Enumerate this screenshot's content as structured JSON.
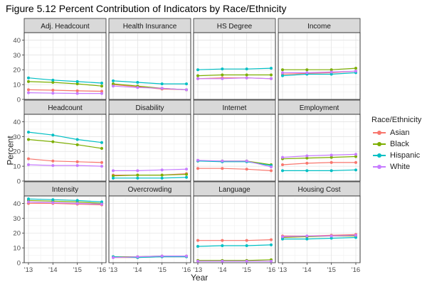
{
  "title": "Figure 5.12 Percent Contribution of Indicators by Race/Ethnicity",
  "chart_data": {
    "type": "line",
    "xlabel": "Year",
    "ylabel": "Percent",
    "x": [
      2013,
      2014,
      2015,
      2016
    ],
    "x_tick_labels": [
      "'13",
      "'14",
      "'15",
      "'16"
    ],
    "ylim": [
      0,
      45
    ],
    "y_ticks": [
      0,
      10,
      20,
      30,
      40
    ],
    "y_tick_labels": [
      "0",
      "10",
      "20",
      "30",
      "40"
    ],
    "legend": {
      "title": "Race/Ethnicity",
      "entries": [
        "Asian",
        "Black",
        "Hispanic",
        "White"
      ]
    },
    "colors": {
      "Asian": "#F8766D",
      "Black": "#7CAE00",
      "Hispanic": "#00BFC4",
      "White": "#C77CFF"
    },
    "panels": [
      {
        "name": "Adj. Headcount",
        "series": [
          {
            "name": "Asian",
            "values": [
              6.5,
              6.2,
              5.8,
              5.5
            ]
          },
          {
            "name": "Black",
            "values": [
              12,
              11.5,
              10.5,
              9
            ]
          },
          {
            "name": "Hispanic",
            "values": [
              14.5,
              13,
              12,
              11
            ]
          },
          {
            "name": "White",
            "values": [
              4.5,
              4.2,
              4,
              4
            ]
          }
        ]
      },
      {
        "name": "Health Insurance",
        "series": [
          {
            "name": "Asian",
            "values": [
              10,
              8.5,
              7,
              6.5
            ]
          },
          {
            "name": "Black",
            "values": [
              10.5,
              9,
              7.5,
              6.5
            ]
          },
          {
            "name": "Hispanic",
            "values": [
              12.5,
              11.5,
              10.5,
              10.5
            ]
          },
          {
            "name": "White",
            "values": [
              9,
              8,
              7.5,
              6.5
            ]
          }
        ]
      },
      {
        "name": "HS Degree",
        "series": [
          {
            "name": "Asian",
            "values": [
              14,
              14.5,
              14.5,
              14
            ]
          },
          {
            "name": "Black",
            "values": [
              16,
              16.5,
              16.5,
              16.5
            ]
          },
          {
            "name": "Hispanic",
            "values": [
              20,
              20.5,
              20.5,
              21
            ]
          },
          {
            "name": "White",
            "values": [
              14,
              14,
              14.5,
              14
            ]
          }
        ]
      },
      {
        "name": "Income",
        "series": [
          {
            "name": "Asian",
            "values": [
              17,
              17.5,
              18,
              19
            ]
          },
          {
            "name": "Black",
            "values": [
              20,
              20,
              20,
              21
            ]
          },
          {
            "name": "Hispanic",
            "values": [
              16,
              17,
              17,
              18
            ]
          },
          {
            "name": "White",
            "values": [
              18,
              18,
              18.5,
              19
            ]
          }
        ]
      },
      {
        "name": "Headcount",
        "series": [
          {
            "name": "Asian",
            "values": [
              15,
              13.5,
              13,
              12.5
            ]
          },
          {
            "name": "Black",
            "values": [
              28,
              26.5,
              24.5,
              22
            ]
          },
          {
            "name": "Hispanic",
            "values": [
              33,
              31,
              28,
              26
            ]
          },
          {
            "name": "White",
            "values": [
              11,
              10.5,
              10.5,
              10
            ]
          }
        ]
      },
      {
        "name": "Disability",
        "series": [
          {
            "name": "Asian",
            "values": [
              4,
              4,
              4,
              5
            ]
          },
          {
            "name": "Black",
            "values": [
              3.5,
              4,
              4,
              4.5
            ]
          },
          {
            "name": "Hispanic",
            "values": [
              2,
              2,
              2,
              2.5
            ]
          },
          {
            "name": "White",
            "values": [
              7,
              7,
              7.5,
              8
            ]
          }
        ]
      },
      {
        "name": "Internet",
        "series": [
          {
            "name": "Asian",
            "values": [
              8.5,
              8.5,
              8,
              7
            ]
          },
          {
            "name": "Black",
            "values": [
              13.5,
              13.5,
              13.5,
              11
            ]
          },
          {
            "name": "Hispanic",
            "values": [
              13.5,
              13,
              13,
              10.5
            ]
          },
          {
            "name": "White",
            "values": [
              14,
              13.5,
              13.5,
              9.5
            ]
          }
        ]
      },
      {
        "name": "Employment",
        "series": [
          {
            "name": "Asian",
            "values": [
              11,
              12,
              12.5,
              12.5
            ]
          },
          {
            "name": "Black",
            "values": [
              15,
              15.5,
              16,
              16.5
            ]
          },
          {
            "name": "Hispanic",
            "values": [
              7,
              7,
              7,
              7.5
            ]
          },
          {
            "name": "White",
            "values": [
              16,
              17,
              17.5,
              18
            ]
          }
        ]
      },
      {
        "name": "Intensity",
        "series": [
          {
            "name": "Asian",
            "values": [
              40,
              40,
              39.5,
              39
            ]
          },
          {
            "name": "Black",
            "values": [
              42,
              41.5,
              41,
              40
            ]
          },
          {
            "name": "Hispanic",
            "values": [
              43,
              42.5,
              42,
              41
            ]
          },
          {
            "name": "White",
            "values": [
              41,
              40.5,
              40,
              39.5
            ]
          }
        ]
      },
      {
        "name": "Overcrowding",
        "series": [
          {
            "name": "Asian",
            "values": [
              3.5,
              3.5,
              4,
              4
            ]
          },
          {
            "name": "Black",
            "values": [
              4,
              4,
              4.5,
              4.5
            ]
          },
          {
            "name": "Hispanic",
            "values": [
              4,
              3.5,
              4,
              4
            ]
          },
          {
            "name": "White",
            "values": [
              3.5,
              4,
              4.5,
              4.5
            ]
          }
        ]
      },
      {
        "name": "Language",
        "series": [
          {
            "name": "Asian",
            "values": [
              15,
              15,
              15,
              15.5
            ]
          },
          {
            "name": "Black",
            "values": [
              1.5,
              1.5,
              1.5,
              2
            ]
          },
          {
            "name": "Hispanic",
            "values": [
              11,
              11.5,
              11.5,
              12
            ]
          },
          {
            "name": "White",
            "values": [
              1,
              1,
              1,
              1
            ]
          }
        ]
      },
      {
        "name": "Housing Cost",
        "series": [
          {
            "name": "Asian",
            "values": [
              18,
              18,
              18.5,
              19
            ]
          },
          {
            "name": "Black",
            "values": [
              17,
              17.5,
              18,
              18
            ]
          },
          {
            "name": "Hispanic",
            "values": [
              16,
              16,
              16.5,
              17
            ]
          },
          {
            "name": "White",
            "values": [
              17.5,
              18,
              18,
              18.5
            ]
          }
        ]
      }
    ]
  }
}
